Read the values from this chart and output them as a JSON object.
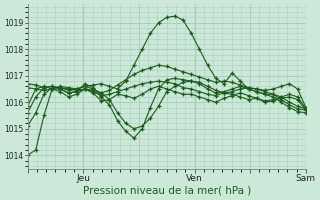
{
  "bg_color": "#cce8d8",
  "grid_color": "#aacfbc",
  "line_color": "#1a5c1a",
  "marker_color": "#1a5c1a",
  "xlabel": "Pression niveau de la mer( hPa )",
  "ylim": [
    1013.5,
    1019.7
  ],
  "yticks": [
    1014,
    1015,
    1016,
    1017,
    1018,
    1019
  ],
  "xtick_labels": [
    "",
    "Jeu",
    "",
    "Ven",
    "",
    "Sam"
  ],
  "xtick_positions": [
    0,
    24,
    48,
    72,
    96,
    120
  ],
  "total_x": 120,
  "series": [
    [
      1014.0,
      1014.2,
      1015.5,
      1016.5,
      1016.6,
      1016.55,
      1016.5,
      1016.6,
      1016.65,
      1016.7,
      1016.6,
      1016.5,
      1016.8,
      1017.4,
      1018.0,
      1018.6,
      1019.0,
      1019.2,
      1019.25,
      1019.1,
      1018.6,
      1018.0,
      1017.4,
      1016.9,
      1016.7,
      1017.1,
      1016.8,
      1016.5,
      1016.4,
      1016.3,
      1016.3,
      1016.2,
      1016.0,
      1015.85,
      1015.75
    ],
    [
      1015.1,
      1015.6,
      1016.3,
      1016.55,
      1016.55,
      1016.5,
      1016.45,
      1016.5,
      1016.45,
      1016.35,
      1016.1,
      1015.6,
      1015.2,
      1015.0,
      1015.1,
      1015.4,
      1015.85,
      1016.4,
      1016.6,
      1016.75,
      1016.8,
      1016.75,
      1016.6,
      1016.45,
      1016.35,
      1016.4,
      1016.5,
      1016.55,
      1016.5,
      1016.4,
      1016.3,
      1016.1,
      1015.9,
      1015.75,
      1015.7
    ],
    [
      1015.6,
      1016.2,
      1016.55,
      1016.6,
      1016.5,
      1016.35,
      1016.4,
      1016.7,
      1016.55,
      1016.2,
      1015.9,
      1015.3,
      1014.9,
      1014.65,
      1015.0,
      1015.8,
      1016.5,
      1016.85,
      1016.9,
      1016.85,
      1016.8,
      1016.7,
      1016.5,
      1016.35,
      1016.4,
      1016.5,
      1016.6,
      1016.5,
      1016.4,
      1016.3,
      1016.2,
      1016.0,
      1015.8,
      1015.65,
      1015.6
    ],
    [
      1016.7,
      1016.65,
      1016.55,
      1016.6,
      1016.55,
      1016.45,
      1016.5,
      1016.6,
      1016.5,
      1016.35,
      1016.45,
      1016.65,
      1016.85,
      1017.05,
      1017.2,
      1017.3,
      1017.4,
      1017.35,
      1017.25,
      1017.15,
      1017.05,
      1016.95,
      1016.85,
      1016.75,
      1016.8,
      1016.75,
      1016.65,
      1016.55,
      1016.5,
      1016.45,
      1016.5,
      1016.6,
      1016.7,
      1016.5,
      1015.8
    ],
    [
      1016.55,
      1016.5,
      1016.45,
      1016.5,
      1016.5,
      1016.35,
      1016.4,
      1016.5,
      1016.4,
      1016.25,
      1016.3,
      1016.4,
      1016.5,
      1016.6,
      1016.7,
      1016.75,
      1016.8,
      1016.75,
      1016.7,
      1016.55,
      1016.5,
      1016.4,
      1016.3,
      1016.25,
      1016.35,
      1016.3,
      1016.2,
      1016.1,
      1016.15,
      1016.05,
      1016.1,
      1016.2,
      1016.3,
      1016.2,
      1015.75
    ],
    [
      1015.85,
      1016.5,
      1016.6,
      1016.5,
      1016.4,
      1016.2,
      1016.3,
      1016.5,
      1016.35,
      1016.05,
      1016.1,
      1016.3,
      1016.25,
      1016.15,
      1016.3,
      1016.5,
      1016.6,
      1016.5,
      1016.4,
      1016.3,
      1016.3,
      1016.2,
      1016.1,
      1016.0,
      1016.15,
      1016.25,
      1016.35,
      1016.25,
      1016.15,
      1016.0,
      1016.05,
      1016.15,
      1016.2,
      1016.1,
      1015.7
    ]
  ]
}
